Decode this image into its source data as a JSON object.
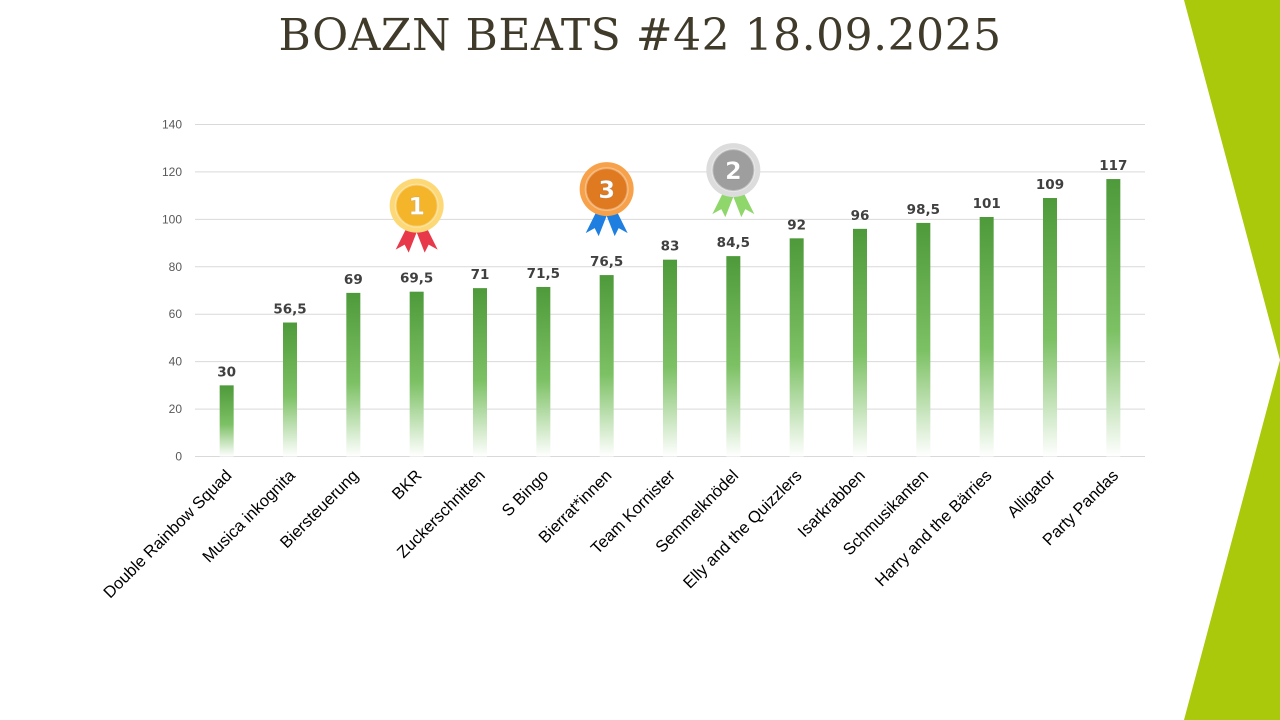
{
  "title": "BOAZN BEATS #42 18.09.2025",
  "colors": {
    "accent": "#a9c90a",
    "bar_top": "#4e9a3a",
    "bar_bottom": "#ffffff",
    "gold": "#f5b52a",
    "silver": "#a6a6a6",
    "bronze": "#e8842a"
  },
  "medals": [
    {
      "rank": "1",
      "team": "BKR",
      "icon": "gold-medal-icon",
      "ribbon": "#e8394a",
      "disc": "#f5b52a",
      "rim": "#fcd876"
    },
    {
      "rank": "2",
      "team": "Semmelknödel",
      "icon": "silver-medal-icon",
      "ribbon": "#8fd66b",
      "disc": "#9e9e9e",
      "rim": "#dcdcdc"
    },
    {
      "rank": "3",
      "team": "Bierrat*innen",
      "icon": "bronze-medal-icon",
      "ribbon": "#1f7fe0",
      "disc": "#e07a20",
      "rim": "#f7a24a"
    }
  ],
  "chart_data": {
    "type": "bar",
    "title": "",
    "xlabel": "",
    "ylabel": "",
    "ylim": [
      0,
      140
    ],
    "yticks": [
      0,
      20,
      40,
      60,
      80,
      100,
      120,
      140
    ],
    "grid": true,
    "legend": "none",
    "categories": [
      "Double Rainbow Squad",
      "Musica inkognita",
      "Biersteuerung",
      "BKR",
      "Zuckerschnitten",
      "S Bingo",
      "Bierrat*innen",
      "Team Kornister",
      "Semmelknödel",
      "Elly and the Quizzlers",
      "Isarkrabben",
      "Schmusikanten",
      "Harry and the Bärries",
      "Alligator",
      "Party Pandas"
    ],
    "values": [
      30,
      56.5,
      69,
      69.5,
      71,
      71.5,
      76.5,
      83,
      84.5,
      92,
      96,
      98.5,
      101,
      109,
      117
    ],
    "value_labels": [
      "30",
      "56,5",
      "69",
      "69,5",
      "71",
      "71,5",
      "76,5",
      "83",
      "84,5",
      "92",
      "96",
      "98,5",
      "101",
      "109",
      "117"
    ]
  }
}
